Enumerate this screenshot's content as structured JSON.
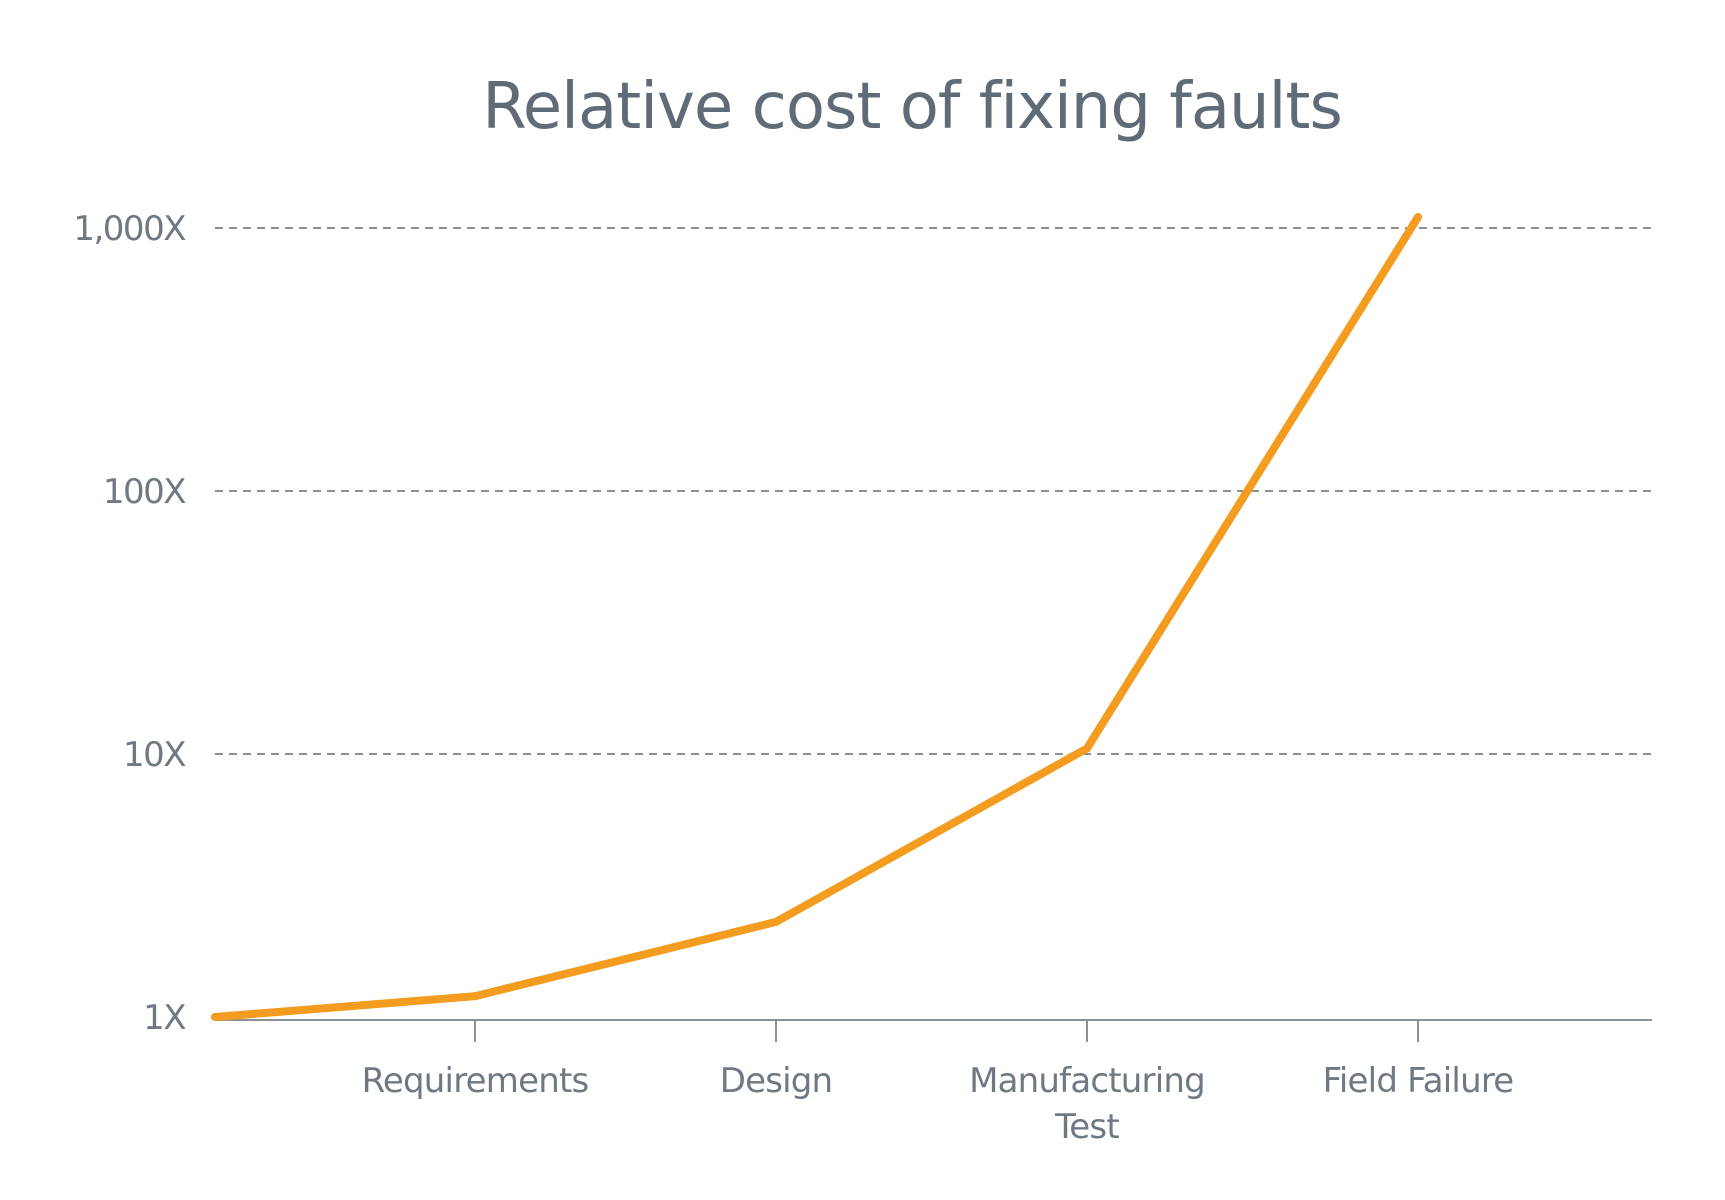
{
  "chart_data": {
    "type": "line",
    "title": "Relative cost of fixing faults",
    "xlabel": "",
    "ylabel": "",
    "y_scale": "log",
    "ylim": [
      1,
      1000
    ],
    "y_ticks": [
      {
        "value": 1,
        "label": "1X"
      },
      {
        "value": 10,
        "label": "10X"
      },
      {
        "value": 100,
        "label": "100X"
      },
      {
        "value": 1000,
        "label": "1,000X"
      }
    ],
    "grid": "horizontal dashed",
    "x_ticks": [
      {
        "position": 1,
        "label_lines": [
          "Requirements"
        ]
      },
      {
        "position": 2,
        "label_lines": [
          "Design"
        ]
      },
      {
        "position": 3,
        "label_lines": [
          "Manufacturing",
          "Test"
        ]
      },
      {
        "position": 4,
        "label_lines": [
          "Field Failure"
        ]
      }
    ],
    "series": [
      {
        "color": "#f39c1f",
        "points": [
          {
            "x": 0,
            "y": 1
          },
          {
            "x": 1,
            "y": 1.2
          },
          {
            "x": 2,
            "y": 2.3
          },
          {
            "x": 3,
            "y": 10.5
          },
          {
            "x": 4,
            "y": 1100
          }
        ]
      }
    ]
  }
}
